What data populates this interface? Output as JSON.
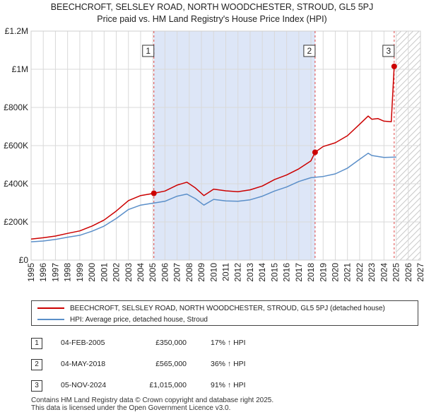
{
  "chart_data": {
    "type": "line",
    "title": "BEECHCROFT, SELSLEY ROAD, NORTH WOODCHESTER, STROUD, GL5 5PJ",
    "subtitle": "Price paid vs. HM Land Registry's House Price Index (HPI)",
    "xlim": [
      1995,
      2027
    ],
    "ylim": [
      0,
      1200000
    ],
    "x_ticks": [
      "1995",
      "1996",
      "1997",
      "1998",
      "1999",
      "2000",
      "2001",
      "2002",
      "2003",
      "2004",
      "2005",
      "2006",
      "2007",
      "2008",
      "2009",
      "2010",
      "2011",
      "2012",
      "2013",
      "2014",
      "2015",
      "2016",
      "2017",
      "2018",
      "2019",
      "2020",
      "2021",
      "2022",
      "2023",
      "2024",
      "2025",
      "2026",
      "2027"
    ],
    "y_ticks": [
      {
        "value": 0,
        "label": "£0"
      },
      {
        "value": 200000,
        "label": "£200K"
      },
      {
        "value": 400000,
        "label": "£400K"
      },
      {
        "value": 600000,
        "label": "£600K"
      },
      {
        "value": 800000,
        "label": "£800K"
      },
      {
        "value": 1000000,
        "label": "£1M"
      },
      {
        "value": 1200000,
        "label": "£1.2M"
      }
    ],
    "hatched_from": 2025.0,
    "shaded_ranges": [
      [
        2005.09,
        2018.34
      ]
    ],
    "series": [
      {
        "name": "BEECHCROFT, SELSLEY ROAD, NORTH WOODCHESTER, STROUD, GL5 5PJ (detached house)",
        "color": "#cc0000",
        "x": [
          1995.0,
          1996.0,
          1997.0,
          1998.0,
          1999.0,
          2000.0,
          2001.0,
          2002.0,
          2003.0,
          2004.0,
          2005.09,
          2006.0,
          2007.0,
          2007.8,
          2008.5,
          2009.2,
          2010.0,
          2011.0,
          2012.0,
          2013.0,
          2014.0,
          2015.0,
          2016.0,
          2017.0,
          2018.0,
          2018.34,
          2019.0,
          2020.0,
          2021.0,
          2022.0,
          2022.7,
          2023.0,
          2023.5,
          2024.0,
          2024.6,
          2024.84,
          2025.0
        ],
        "y": [
          110000,
          117000,
          126000,
          140000,
          153000,
          178000,
          210000,
          257000,
          312000,
          338000,
          350000,
          362000,
          393000,
          408000,
          378000,
          338000,
          372000,
          363000,
          358000,
          368000,
          388000,
          422000,
          446000,
          478000,
          520000,
          565000,
          595000,
          615000,
          652000,
          712000,
          755000,
          738000,
          742000,
          728000,
          725000,
          1015000,
          1022000
        ]
      },
      {
        "name": "HPI: Average price, detached house, Stroud",
        "color": "#5b8fc9",
        "x": [
          1995.0,
          1996.0,
          1997.0,
          1998.0,
          1999.0,
          2000.0,
          2001.0,
          2002.0,
          2003.0,
          2004.0,
          2005.0,
          2006.0,
          2007.0,
          2007.8,
          2008.5,
          2009.2,
          2010.0,
          2011.0,
          2012.0,
          2013.0,
          2014.0,
          2015.0,
          2016.0,
          2017.0,
          2018.0,
          2019.0,
          2020.0,
          2021.0,
          2022.0,
          2022.7,
          2023.0,
          2024.0,
          2025.0
        ],
        "y": [
          96000,
          100000,
          108000,
          120000,
          130000,
          151000,
          178000,
          218000,
          265000,
          288000,
          298000,
          308000,
          335000,
          346000,
          322000,
          288000,
          318000,
          310000,
          308000,
          316000,
          335000,
          362000,
          383000,
          412000,
          432000,
          438000,
          452000,
          482000,
          528000,
          560000,
          548000,
          538000,
          540000
        ]
      }
    ],
    "sales": [
      {
        "label": "1",
        "x": 2005.09,
        "price": 350000
      },
      {
        "label": "2",
        "x": 2018.34,
        "price": 565000
      },
      {
        "label": "3",
        "x": 2024.84,
        "price": 1015000
      }
    ]
  },
  "legend": {
    "property_label": "BEECHCROFT, SELSLEY ROAD, NORTH WOODCHESTER, STROUD, GL5 5PJ (detached house)",
    "hpi_label": "HPI: Average price, detached house, Stroud"
  },
  "transactions": [
    {
      "num": "1",
      "date": "04-FEB-2005",
      "price": "£350,000",
      "hpi": "17% ↑ HPI"
    },
    {
      "num": "2",
      "date": "04-MAY-2018",
      "price": "£565,000",
      "hpi": "36% ↑ HPI"
    },
    {
      "num": "3",
      "date": "05-NOV-2024",
      "price": "£1,015,000",
      "hpi": "91% ↑ HPI"
    }
  ],
  "footer": {
    "line1": "Contains HM Land Registry data © Crown copyright and database right 2025.",
    "line2": "This data is licensed under the Open Government Licence v3.0."
  },
  "colors": {
    "property": "#cc0000",
    "hpi": "#5b8fc9",
    "shade": "#dde6f7"
  }
}
